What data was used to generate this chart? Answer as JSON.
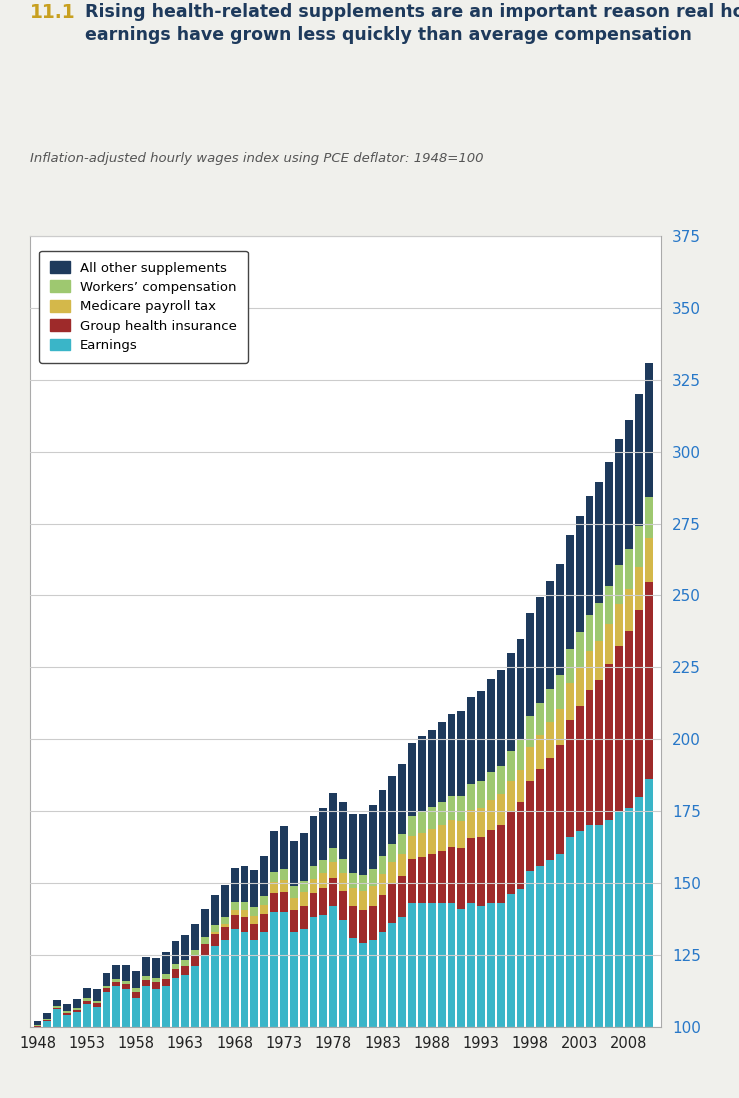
{
  "title_number": "11.1",
  "title_text": "Rising health-related supplements are an important reason real hourly\nearnings have grown less quickly than average compensation",
  "subtitle": "Inflation-adjusted hourly wages index using PCE deflator: 1948=100",
  "years": [
    1948,
    1949,
    1950,
    1951,
    1952,
    1953,
    1954,
    1955,
    1956,
    1957,
    1958,
    1959,
    1960,
    1961,
    1962,
    1963,
    1964,
    1965,
    1966,
    1967,
    1968,
    1969,
    1970,
    1971,
    1972,
    1973,
    1974,
    1975,
    1976,
    1977,
    1978,
    1979,
    1980,
    1981,
    1982,
    1983,
    1984,
    1985,
    1986,
    1987,
    1988,
    1989,
    1990,
    1991,
    1992,
    1993,
    1994,
    1995,
    1996,
    1997,
    1998,
    1999,
    2000,
    2001,
    2002,
    2003,
    2004,
    2005,
    2006,
    2007,
    2008,
    2009,
    2010
  ],
  "earnings": [
    100,
    102,
    106,
    104,
    105,
    108,
    107,
    112,
    114,
    113,
    110,
    114,
    113,
    114,
    117,
    118,
    121,
    125,
    128,
    130,
    134,
    133,
    130,
    133,
    140,
    140,
    133,
    134,
    138,
    139,
    142,
    137,
    131,
    129,
    130,
    133,
    136,
    138,
    143,
    143,
    143,
    143,
    143,
    141,
    143,
    142,
    143,
    143,
    146,
    148,
    154,
    156,
    158,
    160,
    166,
    168,
    170,
    170,
    172,
    175,
    176,
    180,
    186
  ],
  "group_health": [
    0.3,
    0.4,
    0.6,
    0.7,
    0.9,
    1.0,
    1.1,
    1.3,
    1.5,
    1.7,
    2.0,
    2.2,
    2.4,
    2.7,
    3.0,
    3.2,
    3.5,
    3.8,
    4.1,
    4.5,
    4.9,
    5.3,
    5.7,
    6.1,
    6.5,
    7.0,
    7.5,
    8.0,
    8.5,
    9.1,
    9.7,
    10.3,
    10.9,
    11.5,
    12.1,
    12.9,
    13.6,
    14.4,
    15.2,
    16.1,
    17.0,
    18.1,
    19.5,
    21.0,
    22.5,
    24.0,
    25.5,
    27.0,
    28.5,
    30.0,
    31.5,
    33.5,
    35.5,
    38.0,
    40.5,
    43.5,
    47.0,
    50.5,
    54.0,
    57.5,
    61.5,
    65.0,
    68.5
  ],
  "medicare": [
    0.0,
    0.0,
    0.0,
    0.0,
    0.0,
    0.0,
    0.0,
    0.0,
    0.0,
    0.0,
    0.0,
    0.0,
    0.0,
    0.0,
    0.0,
    0.0,
    0.0,
    0.0,
    0.8,
    1.2,
    1.8,
    2.2,
    2.8,
    3.2,
    3.7,
    4.1,
    4.4,
    4.7,
    5.0,
    5.3,
    5.7,
    6.0,
    6.3,
    6.6,
    6.9,
    7.2,
    7.5,
    7.8,
    8.1,
    8.4,
    8.7,
    9.0,
    9.3,
    9.6,
    9.9,
    10.2,
    10.5,
    10.8,
    11.1,
    11.4,
    11.7,
    12.0,
    12.3,
    12.6,
    12.9,
    13.2,
    13.5,
    13.8,
    14.1,
    14.4,
    14.7,
    15.0,
    15.3
  ],
  "workers_comp": [
    0.3,
    0.4,
    0.5,
    0.6,
    0.7,
    0.8,
    0.9,
    1.0,
    1.1,
    1.2,
    1.4,
    1.5,
    1.6,
    1.7,
    1.9,
    2.0,
    2.1,
    2.3,
    2.4,
    2.6,
    2.8,
    3.0,
    3.1,
    3.3,
    3.5,
    3.7,
    3.9,
    4.1,
    4.3,
    4.6,
    4.8,
    5.1,
    5.3,
    5.6,
    5.8,
    6.1,
    6.4,
    6.7,
    7.0,
    7.3,
    7.6,
    7.9,
    8.3,
    8.6,
    8.9,
    9.2,
    9.6,
    9.9,
    10.2,
    10.5,
    10.9,
    11.2,
    11.5,
    11.8,
    12.1,
    12.4,
    12.7,
    13.0,
    13.3,
    13.6,
    13.9,
    14.2,
    14.5
  ],
  "other_supplements": [
    1.5,
    1.8,
    2.2,
    2.7,
    3.1,
    3.6,
    4.0,
    4.5,
    5.0,
    5.5,
    6.0,
    6.5,
    7.0,
    7.5,
    8.0,
    8.6,
    9.2,
    9.8,
    10.4,
    11.0,
    11.7,
    12.4,
    13.0,
    13.7,
    14.4,
    15.1,
    15.8,
    16.6,
    17.4,
    18.2,
    19.0,
    19.8,
    20.6,
    21.4,
    22.2,
    23.0,
    23.8,
    24.6,
    25.4,
    26.2,
    27.0,
    27.8,
    28.7,
    29.6,
    30.5,
    31.4,
    32.3,
    33.2,
    34.1,
    35.0,
    35.9,
    36.8,
    37.7,
    38.6,
    39.5,
    40.4,
    41.3,
    42.2,
    43.1,
    44.0,
    44.9,
    45.8,
    46.7
  ],
  "colors": {
    "earnings": "#3ab5c8",
    "group_health": "#9e2a2a",
    "medicare": "#d4b84a",
    "workers_comp": "#9ec870",
    "other_supplements": "#1e3a5c"
  },
  "ylim": [
    100,
    375
  ],
  "yticks": [
    100,
    125,
    150,
    175,
    200,
    225,
    250,
    275,
    300,
    325,
    350,
    375
  ],
  "xtick_labels": [
    "1948",
    "1953",
    "1958",
    "1963",
    "1968",
    "1973",
    "1978",
    "1983",
    "1988",
    "1993",
    "1998",
    "2003",
    "2008"
  ],
  "xtick_positions": [
    1948,
    1953,
    1958,
    1963,
    1968,
    1973,
    1978,
    1983,
    1988,
    1993,
    1998,
    2003,
    2008
  ],
  "title_color": "#1e3a5c",
  "number_color": "#c8a020",
  "subtitle_color": "#555555",
  "yaxis_color": "#2878c8",
  "grid_color": "#cccccc",
  "bg_color": "#ffffff",
  "bar_width": 0.8
}
